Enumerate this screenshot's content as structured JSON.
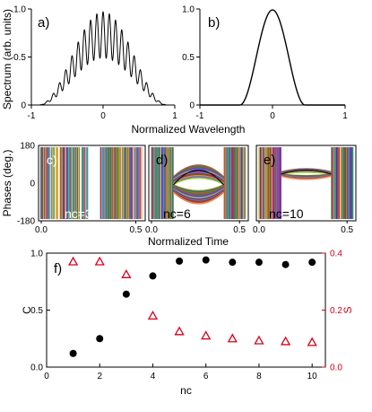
{
  "chart_data": [
    {
      "id": "a",
      "type": "line",
      "panel_label": "a)",
      "xlabel": "Normalized Wavelength",
      "ylabel": "Spectrum (arb. units)",
      "xlim": [
        -1,
        1
      ],
      "ylim": [
        0,
        1.0
      ],
      "xticks": [
        "-1",
        "0",
        "1"
      ],
      "yticks": [
        "0",
        "0.5",
        "1.0"
      ],
      "description_series": "modulated spectrum: raised-cosine envelope with fast interference fringes"
    },
    {
      "id": "b",
      "type": "line",
      "panel_label": "b)",
      "xlim": [
        -1,
        1
      ],
      "ylim": [
        0,
        1.0
      ],
      "xticks": [
        "-1",
        "0",
        "1"
      ],
      "yticks": [
        "0",
        "0.5",
        "1.0"
      ]
    },
    {
      "id": "c",
      "type": "line",
      "panel_label": "c)",
      "annotation": "nc=3",
      "xlabel": "Normalized Time",
      "ylabel": "Phases (deg.)",
      "xlim": [
        0,
        0.5
      ],
      "ylim": [
        -180,
        180
      ],
      "xticks": [
        "0.0",
        "0.5"
      ],
      "yticks": [
        "-180",
        "0",
        "180"
      ]
    },
    {
      "id": "d",
      "type": "line",
      "panel_label": "d)",
      "annotation": "nc=6",
      "xlim": [
        0,
        0.5
      ],
      "xticks": [
        "0.0",
        "0.5"
      ]
    },
    {
      "id": "e",
      "type": "line",
      "panel_label": "e)",
      "annotation": "nc=10",
      "xlim": [
        0,
        0.5
      ],
      "xticks": [
        "0.0",
        "0.5"
      ]
    },
    {
      "id": "f",
      "type": "scatter",
      "panel_label": "f)",
      "xlabel": "nc",
      "ylabel": "C",
      "ylabel_right": "S",
      "xlim": [
        0,
        10.5
      ],
      "ylim": [
        0,
        1.0
      ],
      "ylim_right": [
        0,
        0.4
      ],
      "xticks": [
        "0",
        "2",
        "4",
        "6",
        "8",
        "10"
      ],
      "yticks": [
        "0.0",
        "0.5",
        "1.0"
      ],
      "yticks_right": [
        "0.0",
        "0.2",
        "0.4"
      ],
      "series": [
        {
          "name": "C",
          "axis": "left",
          "marker": "circle",
          "color": "#000000",
          "x": [
            1,
            2,
            3,
            4,
            5,
            6,
            7,
            8,
            9,
            10
          ],
          "y": [
            0.12,
            0.25,
            0.64,
            0.8,
            0.93,
            0.94,
            0.92,
            0.92,
            0.9,
            0.92
          ]
        },
        {
          "name": "S",
          "axis": "right",
          "marker": "triangle-open",
          "color": "#d6001c",
          "x": [
            1,
            2,
            3,
            4,
            5,
            6,
            7,
            8,
            9,
            10
          ],
          "y": [
            0.37,
            0.37,
            0.325,
            0.18,
            0.125,
            0.11,
            0.1,
            0.093,
            0.09,
            0.087
          ]
        }
      ]
    }
  ]
}
